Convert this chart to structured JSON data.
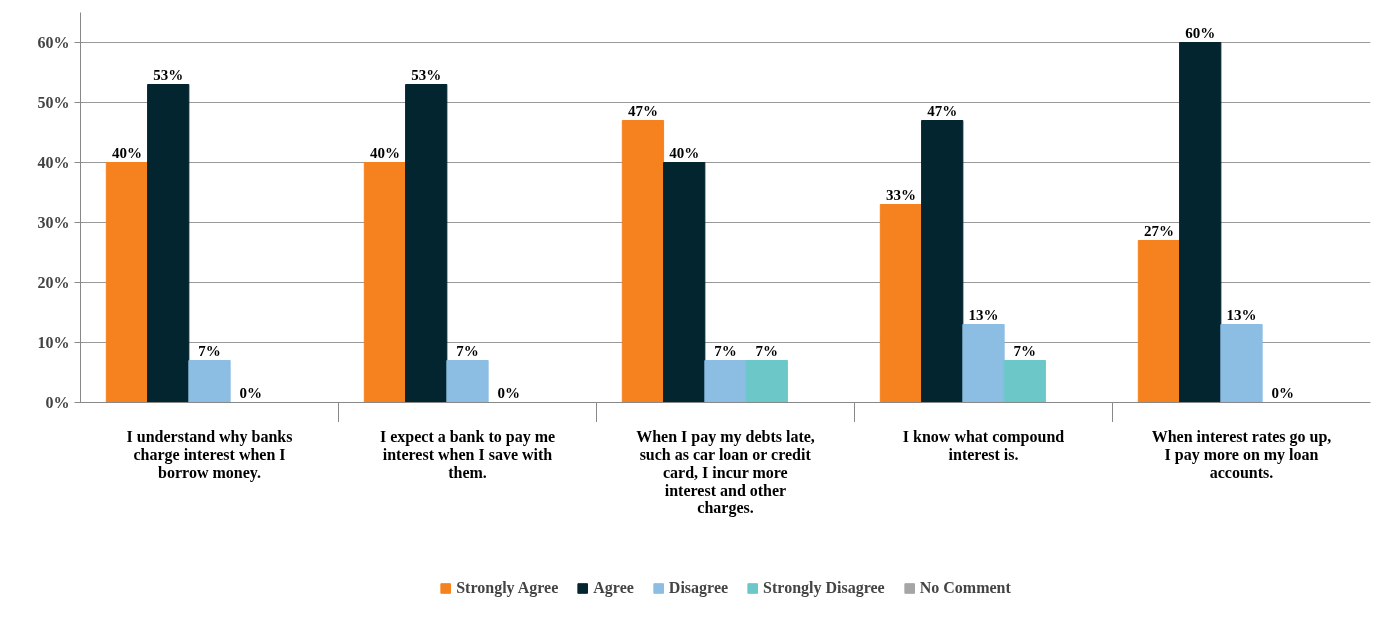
{
  "chart_data": {
    "type": "bar",
    "categories": [
      "I understand why banks charge interest when I borrow money.",
      "I expect a bank to pay me interest when I save with them.",
      "When I pay my debts late, such as car loan or credit card, I incur more interest and other charges.",
      "I know what compound interest is.",
      "When interest rates go up, I pay more on my loan accounts."
    ],
    "series": [
      {
        "name": "Strongly Agree",
        "color": "#f5821f",
        "values": [
          40,
          40,
          47,
          33,
          27
        ],
        "value_labels": [
          "40%",
          "40%",
          "47%",
          "33%",
          "27%"
        ]
      },
      {
        "name": "Agree",
        "color": "#032530",
        "values": [
          53,
          53,
          40,
          47,
          60
        ],
        "value_labels": [
          "53%",
          "53%",
          "40%",
          "47%",
          "60%"
        ]
      },
      {
        "name": "Disagree",
        "color": "#8cbde3",
        "values": [
          7,
          7,
          7,
          13,
          13
        ],
        "value_labels": [
          "7%",
          "7%",
          "7%",
          "13%",
          "13%"
        ]
      },
      {
        "name": "Strongly Disagree",
        "color": "#6cc7c9",
        "values": [
          0,
          0,
          7,
          7,
          0
        ],
        "value_labels": [
          "0%",
          "0%",
          "7%",
          "7%",
          "0%"
        ]
      },
      {
        "name": "No Comment",
        "color": "#a5a5a5",
        "values": [
          null,
          null,
          null,
          null,
          null
        ]
      }
    ],
    "ylim": [
      0,
      65
    ],
    "yticks": [
      {
        "value": 0,
        "label": "0%"
      },
      {
        "value": 10,
        "label": "10%"
      },
      {
        "value": 20,
        "label": "20%"
      },
      {
        "value": 30,
        "label": "30%"
      },
      {
        "value": 40,
        "label": "40%"
      },
      {
        "value": 50,
        "label": "50%"
      },
      {
        "value": 60,
        "label": "60%"
      }
    ],
    "grid": "y",
    "legend": "bottom"
  }
}
